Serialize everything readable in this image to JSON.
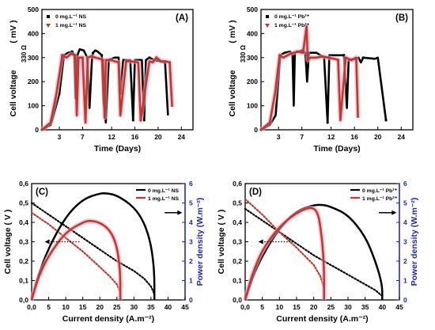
{
  "chart_data": [
    {
      "panel": "(A)",
      "type": "line",
      "xlabel": "Time (Days)",
      "ylabel": "Cell voltage",
      "ylabel_unit": "( mV )",
      "annotation": "330 Ω",
      "xticks": [
        "3",
        "7",
        "12",
        "16",
        "20",
        "24"
      ],
      "yticks": [
        "0",
        "100",
        "200",
        "300",
        "400",
        "500"
      ],
      "xlim": [
        0,
        26
      ],
      "ylim": [
        0,
        500
      ],
      "legend": [
        "0  mg.L⁻¹ NS",
        "1 mg.L⁻¹ NS"
      ],
      "legend_position": "top-left",
      "series": [
        {
          "name": "0  mg.L⁻¹ NS",
          "color": "#000000",
          "x": [
            0,
            1.5,
            2,
            3,
            3.8,
            4.5,
            5.2,
            5.6,
            5.8,
            6.1,
            6.5,
            7.2,
            7.8,
            8.2,
            8.6,
            8.8,
            9.2,
            9.6,
            10.3,
            10.6,
            11.0,
            11.5,
            12.5,
            13.2,
            13.5,
            14.0,
            15.2,
            15.7,
            16.0,
            17.2,
            17.6,
            17.9,
            18.2,
            18.5,
            19.3,
            20.3,
            21.2,
            21.7
          ],
          "y": [
            0,
            20,
            60,
            150,
            310,
            320,
            325,
            310,
            130,
            310,
            335,
            330,
            300,
            90,
            290,
            320,
            330,
            325,
            310,
            120,
            30,
            290,
            300,
            300,
            150,
            290,
            290,
            40,
            290,
            290,
            40,
            290,
            295,
            300,
            290,
            285,
            280,
            60
          ]
        },
        {
          "name": "1 mg.L⁻¹ NS",
          "color": "#c0392b",
          "x": [
            0,
            1.5,
            2.5,
            3.5,
            4.2,
            5.0,
            5.7,
            6.0,
            6.3,
            7.0,
            7.5,
            7.9,
            8.5,
            9.2,
            10.0,
            10.5,
            10.8,
            11.0,
            11.8,
            13.2,
            13.5,
            14.5,
            15.2,
            16.6,
            17.0,
            18.5,
            19.1,
            19.7,
            20.5,
            21.2,
            22.0,
            22.4
          ],
          "y": [
            0,
            30,
            150,
            310,
            300,
            315,
            310,
            60,
            300,
            300,
            30,
            300,
            305,
            300,
            295,
            290,
            50,
            290,
            290,
            280,
            60,
            285,
            285,
            280,
            40,
            285,
            280,
            300,
            285,
            285,
            280,
            95
          ]
        }
      ]
    },
    {
      "panel": "(B)",
      "type": "line",
      "xlabel": "Time (Days)",
      "ylabel": "Cell voltage",
      "ylabel_unit": "( mV )",
      "annotation": "330 Ω",
      "xticks": [
        "3",
        "7",
        "12",
        "16",
        "20",
        "24"
      ],
      "yticks": [
        "0",
        "100",
        "200",
        "300",
        "400",
        "500"
      ],
      "xlim": [
        0,
        26
      ],
      "ylim": [
        0,
        500
      ],
      "legend": [
        "0  mg.L⁻¹ Pb²⁺",
        "1 mg.L⁻¹ Pb²⁺"
      ],
      "legend_position": "top-left",
      "series": [
        {
          "name": "0  mg.L⁻¹ Pb²⁺",
          "color": "#000000",
          "x": [
            0,
            1.5,
            2.5,
            3.3,
            4.0,
            5.0,
            5.4,
            5.6,
            5.8,
            7.0,
            7.6,
            7.9,
            8.2,
            9.5,
            10.8,
            11.4,
            11.7,
            12.2,
            14.2,
            14.7,
            15.0,
            16.3,
            16.7,
            17.1,
            17.5,
            19.5,
            20.0,
            21.4
          ],
          "y": [
            0,
            20,
            60,
            310,
            320,
            325,
            310,
            100,
            320,
            330,
            320,
            200,
            320,
            320,
            300,
            30,
            310,
            310,
            310,
            90,
            290,
            295,
            300,
            280,
            300,
            295,
            300,
            40
          ]
        },
        {
          "name": "1 mg.L⁻¹ Pb²⁺",
          "color": "#c0392b",
          "x": [
            0,
            1.5,
            2.4,
            3.2,
            3.8,
            5.0,
            6.2,
            7.2,
            7.8,
            8.0,
            8.5,
            9.5,
            10.5,
            11.5,
            12.5,
            13.2,
            13.6,
            14.5,
            15.5,
            16.3,
            16.6
          ],
          "y": [
            0,
            30,
            150,
            310,
            300,
            315,
            325,
            320,
            430,
            290,
            300,
            300,
            305,
            300,
            295,
            290,
            40,
            300,
            290,
            300,
            50
          ]
        }
      ]
    },
    {
      "panel": "(C)",
      "type": "line",
      "xlabel": "Current density (A.m⁻²)",
      "ylabel": "Cell voltage ( V )",
      "ylabel_right": "Power density (W.m⁻²)",
      "xticks": [
        "0,0",
        "5",
        "10",
        "15",
        "20",
        "25",
        "30",
        "35",
        "40",
        "45"
      ],
      "yticks": [
        "0,0",
        "0,1",
        "0,2",
        "0,3",
        "0,4",
        "0,5",
        "0,6"
      ],
      "yticks_right": [
        "0",
        "1",
        "2",
        "3",
        "4",
        "5",
        "6"
      ],
      "xlim": [
        0,
        45
      ],
      "ylim": [
        0,
        0.6
      ],
      "ylim_right": [
        0,
        6
      ],
      "legend": [
        "0  mg.L⁻¹ NS",
        "1 mg.L⁻¹ NS"
      ],
      "legend_position": "top-right",
      "series": [
        {
          "name": "0  mg.L⁻¹ NS",
          "color": "#000000",
          "kind": "polarization",
          "x": [
            0,
            5,
            10,
            15,
            20,
            25,
            30,
            33,
            35,
            36
          ],
          "y": [
            0.5,
            0.44,
            0.38,
            0.32,
            0.26,
            0.2,
            0.15,
            0.11,
            0.07,
            0.03
          ]
        },
        {
          "name": "1 mg.L⁻¹ NS",
          "color": "#c0392b",
          "kind": "polarization",
          "x": [
            0,
            5,
            10,
            15,
            20,
            23,
            25,
            26
          ],
          "y": [
            0.45,
            0.39,
            0.32,
            0.25,
            0.17,
            0.12,
            0.08,
            0.04
          ]
        },
        {
          "name": "0  mg.L⁻¹ NS",
          "color": "#000000",
          "kind": "power",
          "x": [
            0,
            2,
            5,
            10,
            15,
            20,
            22,
            25,
            30,
            33,
            35,
            36,
            36
          ],
          "y": [
            0,
            1.3,
            2.7,
            4.3,
            5.2,
            5.5,
            5.5,
            5.4,
            4.8,
            4.0,
            2.9,
            1.5,
            0
          ]
        },
        {
          "name": "1 mg.L⁻¹ NS",
          "color": "#c0392b",
          "kind": "power",
          "x": [
            0,
            2,
            5,
            10,
            15,
            17,
            20,
            23,
            25,
            26,
            26
          ],
          "y": [
            0,
            1.2,
            2.3,
            3.5,
            4.0,
            4.1,
            4.0,
            3.6,
            2.8,
            1.5,
            0
          ]
        }
      ]
    },
    {
      "panel": "(D)",
      "type": "line",
      "xlabel": "Current density (A.m⁻²)",
      "ylabel": "Cell voltage ( V )",
      "ylabel_right": "Power density (W.m⁻²)",
      "xticks": [
        "0,0",
        "5",
        "10",
        "15",
        "20",
        "25",
        "30",
        "35",
        "40",
        "45"
      ],
      "yticks": [
        "0,0",
        "0,1",
        "0,2",
        "0,3",
        "0,4",
        "0,5",
        "0,6"
      ],
      "yticks_right": [
        "0",
        "1",
        "2",
        "3",
        "4",
        "5",
        "6"
      ],
      "xlim": [
        0,
        45
      ],
      "ylim": [
        0,
        0.6
      ],
      "ylim_right": [
        0,
        6
      ],
      "legend": [
        "0  mg.L⁻¹ Pb²⁺",
        "1 mg.L⁻¹ Pb²⁺"
      ],
      "legend_position": "top-right",
      "series": [
        {
          "name": "0  mg.L⁻¹ Pb²⁺",
          "color": "#000000",
          "kind": "polarization",
          "x": [
            0,
            5,
            10,
            15,
            20,
            25,
            30,
            35,
            38,
            40
          ],
          "y": [
            0.47,
            0.41,
            0.35,
            0.29,
            0.23,
            0.18,
            0.13,
            0.08,
            0.05,
            0.02
          ]
        },
        {
          "name": "1 mg.L⁻¹ Pb²⁺",
          "color": "#c0392b",
          "kind": "polarization",
          "x": [
            0,
            5,
            10,
            15,
            20,
            22,
            23
          ],
          "y": [
            0.52,
            0.44,
            0.35,
            0.27,
            0.18,
            0.12,
            0.06
          ]
        },
        {
          "name": "0  mg.L⁻¹ Pb²⁺",
          "color": "#000000",
          "kind": "power",
          "x": [
            0,
            2,
            5,
            10,
            15,
            20,
            23,
            25,
            30,
            35,
            38,
            40,
            40
          ],
          "y": [
            0,
            1.1,
            2.3,
            3.7,
            4.6,
            4.9,
            4.9,
            4.8,
            4.4,
            3.3,
            2.0,
            0.8,
            0
          ]
        },
        {
          "name": "1 mg.L⁻¹ Pb²⁺",
          "color": "#c0392b",
          "kind": "power",
          "x": [
            0,
            2,
            5,
            10,
            15,
            19,
            21,
            22,
            23,
            23
          ],
          "y": [
            0,
            1.3,
            2.6,
            3.8,
            4.5,
            4.8,
            4.6,
            3.8,
            2.0,
            0
          ]
        }
      ]
    }
  ]
}
